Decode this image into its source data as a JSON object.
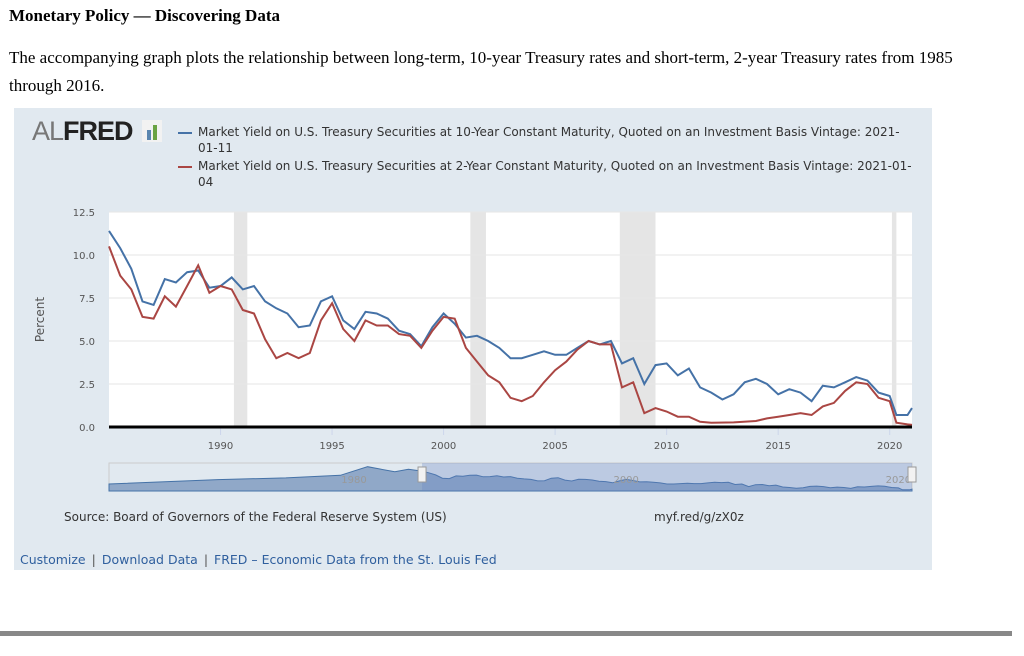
{
  "title": "Monetary Policy — Discovering Data",
  "paragraph": "The accompanying graph plots the relationship between long-term, 10-year Treasury rates and short-term, 2-year Treasury rates from 1985 through 2016.",
  "logo": {
    "al": "AL",
    "fred": "FRED"
  },
  "source": "Source: Board of Governors of the Federal Reserve System (US)",
  "short_url": "myf.red/g/zX0z",
  "links": {
    "customize": "Customize",
    "download": "Download Data",
    "fred": "FRED – Economic Data from the St. Louis Fed"
  },
  "navigator": {
    "labels": [
      "1980",
      "2000",
      "2020"
    ]
  },
  "colors": {
    "ten_year": "#4572a7",
    "two_year": "#aa4643",
    "panel": "#e1e9f0",
    "recession": "#e5e5e5"
  },
  "chart_data": {
    "type": "line",
    "ylabel": "Percent",
    "ylim": [
      0,
      12.5
    ],
    "xlim": [
      1985,
      2021
    ],
    "yticks": [
      "0.0",
      "2.5",
      "5.0",
      "7.5",
      "10.0",
      "12.5"
    ],
    "xticks": [
      "1990",
      "1995",
      "2000",
      "2005",
      "2010",
      "2015",
      "2020"
    ],
    "grid": true,
    "legend_position": "top",
    "recessions": [
      [
        1990.6,
        1991.2
      ],
      [
        2001.2,
        2001.9
      ],
      [
        2007.9,
        2009.5
      ],
      [
        2020.1,
        2020.3
      ]
    ],
    "series": [
      {
        "name": "Market Yield on U.S. Treasury Securities at 10-Year Constant Maturity, Quoted on an Investment Basis Vintage: 2021-01-11",
        "x": [
          1985,
          1985.5,
          1986,
          1986.5,
          1987,
          1987.5,
          1988,
          1988.5,
          1989,
          1989.5,
          1990,
          1990.5,
          1991,
          1991.5,
          1992,
          1992.5,
          1993,
          1993.5,
          1994,
          1994.5,
          1995,
          1995.5,
          1996,
          1996.5,
          1997,
          1997.5,
          1998,
          1998.5,
          1999,
          1999.5,
          2000,
          2000.5,
          2001,
          2001.5,
          2002,
          2002.5,
          2003,
          2003.5,
          2004,
          2004.5,
          2005,
          2005.5,
          2006,
          2006.5,
          2007,
          2007.5,
          2008,
          2008.5,
          2009,
          2009.5,
          2010,
          2010.5,
          2011,
          2011.5,
          2012,
          2012.5,
          2013,
          2013.5,
          2014,
          2014.5,
          2015,
          2015.5,
          2016,
          2016.5,
          2017,
          2017.5,
          2018,
          2018.5,
          2019,
          2019.5,
          2020,
          2020.3,
          2020.8,
          2021
        ],
        "values": [
          11.4,
          10.4,
          9.2,
          7.3,
          7.1,
          8.6,
          8.4,
          9.0,
          9.1,
          8.1,
          8.2,
          8.7,
          8.0,
          8.2,
          7.3,
          6.9,
          6.6,
          5.8,
          5.9,
          7.3,
          7.6,
          6.2,
          5.7,
          6.7,
          6.6,
          6.3,
          5.6,
          5.4,
          4.7,
          5.8,
          6.6,
          6.0,
          5.2,
          5.3,
          5.0,
          4.6,
          4.0,
          4.0,
          4.2,
          4.4,
          4.2,
          4.2,
          4.6,
          5.0,
          4.8,
          5.0,
          3.7,
          4.0,
          2.5,
          3.6,
          3.7,
          3.0,
          3.4,
          2.3,
          2.0,
          1.6,
          1.9,
          2.6,
          2.8,
          2.5,
          1.9,
          2.2,
          2.0,
          1.5,
          2.4,
          2.3,
          2.6,
          2.9,
          2.7,
          2.0,
          1.8,
          0.7,
          0.7,
          1.1
        ]
      },
      {
        "name": "Market Yield on U.S. Treasury Securities at 2-Year Constant Maturity, Quoted on an Investment Basis Vintage: 2021-01-04",
        "x": [
          1985,
          1985.5,
          1986,
          1986.5,
          1987,
          1987.5,
          1988,
          1988.5,
          1989,
          1989.5,
          1990,
          1990.5,
          1991,
          1991.5,
          1992,
          1992.5,
          1993,
          1993.5,
          1994,
          1994.5,
          1995,
          1995.5,
          1996,
          1996.5,
          1997,
          1997.5,
          1998,
          1998.5,
          1999,
          1999.5,
          2000,
          2000.5,
          2001,
          2001.5,
          2002,
          2002.5,
          2003,
          2003.5,
          2004,
          2004.5,
          2005,
          2005.5,
          2006,
          2006.5,
          2007,
          2007.5,
          2008,
          2008.5,
          2009,
          2009.5,
          2010,
          2010.5,
          2011,
          2011.5,
          2012,
          2013,
          2014,
          2014.5,
          2015,
          2015.5,
          2016,
          2016.5,
          2017,
          2017.5,
          2018,
          2018.5,
          2019,
          2019.5,
          2020,
          2020.3,
          2020.8,
          2021
        ],
        "values": [
          10.5,
          8.8,
          8.0,
          6.4,
          6.3,
          7.6,
          7.0,
          8.2,
          9.4,
          7.8,
          8.2,
          8.0,
          6.8,
          6.6,
          5.1,
          4.0,
          4.3,
          4.0,
          4.3,
          6.2,
          7.2,
          5.7,
          5.0,
          6.2,
          5.9,
          5.9,
          5.4,
          5.3,
          4.6,
          5.6,
          6.4,
          6.3,
          4.6,
          3.8,
          3.0,
          2.6,
          1.7,
          1.5,
          1.8,
          2.6,
          3.3,
          3.8,
          4.5,
          5.0,
          4.8,
          4.8,
          2.3,
          2.6,
          0.8,
          1.1,
          0.9,
          0.6,
          0.6,
          0.3,
          0.25,
          0.27,
          0.35,
          0.5,
          0.6,
          0.7,
          0.8,
          0.7,
          1.2,
          1.4,
          2.1,
          2.6,
          2.5,
          1.7,
          1.5,
          0.25,
          0.15,
          0.12
        ]
      }
    ]
  }
}
